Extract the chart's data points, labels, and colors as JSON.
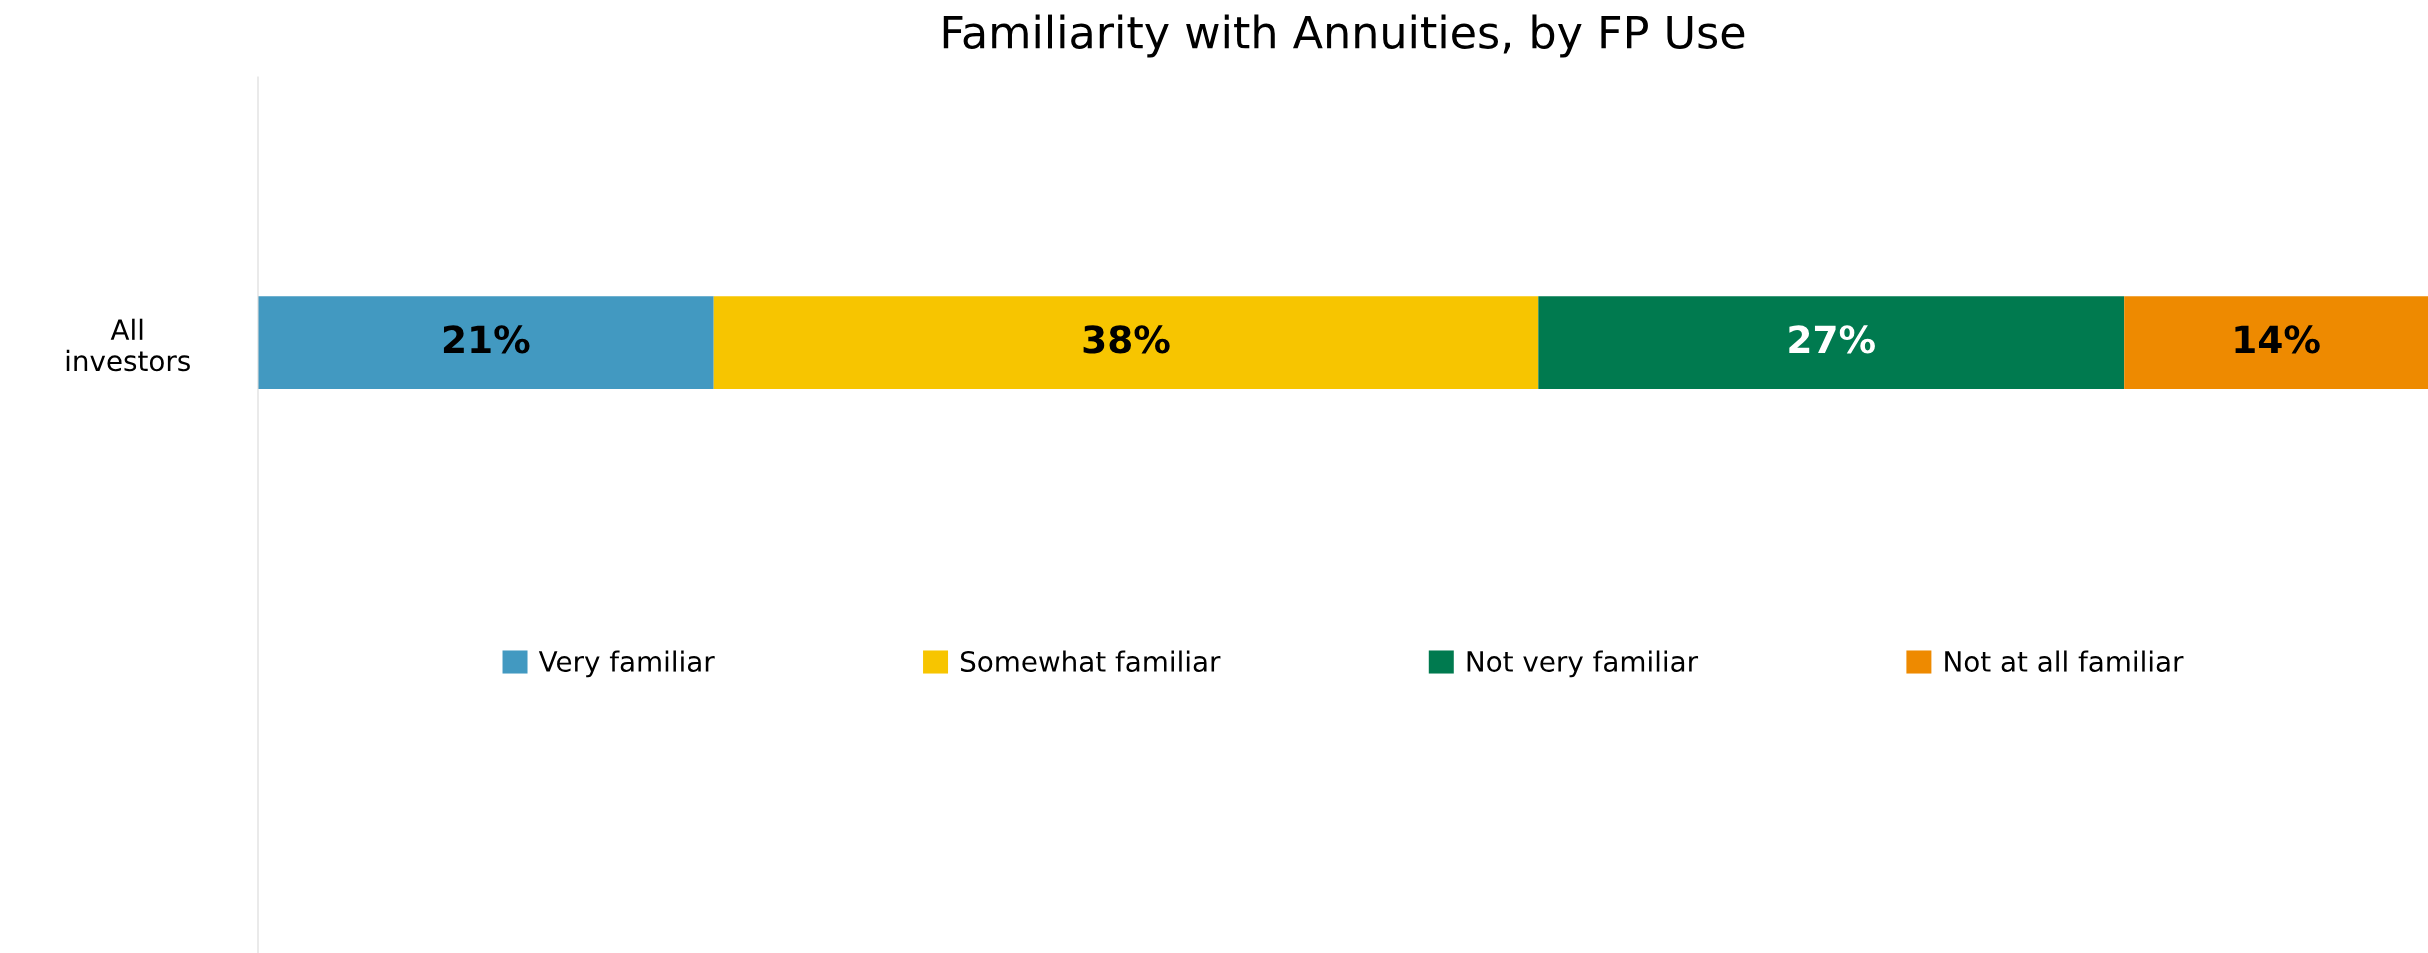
{
  "chart_data": {
    "type": "bar",
    "orientation": "horizontal",
    "stacked": true,
    "title": "Familiarity with Annuities, by FP Use",
    "categories": [
      "All\ninvestors"
    ],
    "series": [
      {
        "name": "Very familiar",
        "color": "#4299c1",
        "values": [
          21
        ],
        "value_labels": [
          "21%"
        ]
      },
      {
        "name": "Somewhat familiar",
        "color": "#f7c500",
        "values": [
          38
        ],
        "value_labels": [
          "38%"
        ]
      },
      {
        "name": "Not very familiar",
        "color": "#007a4f",
        "values": [
          27
        ],
        "value_labels": [
          "27%"
        ]
      },
      {
        "name": "Not at all familiar",
        "color": "#ee8a00",
        "values": [
          14
        ],
        "value_labels": [
          "14%"
        ]
      }
    ],
    "xlim": [
      0,
      100
    ],
    "tick_labels": "y",
    "grid": false,
    "legend": "bottom"
  }
}
